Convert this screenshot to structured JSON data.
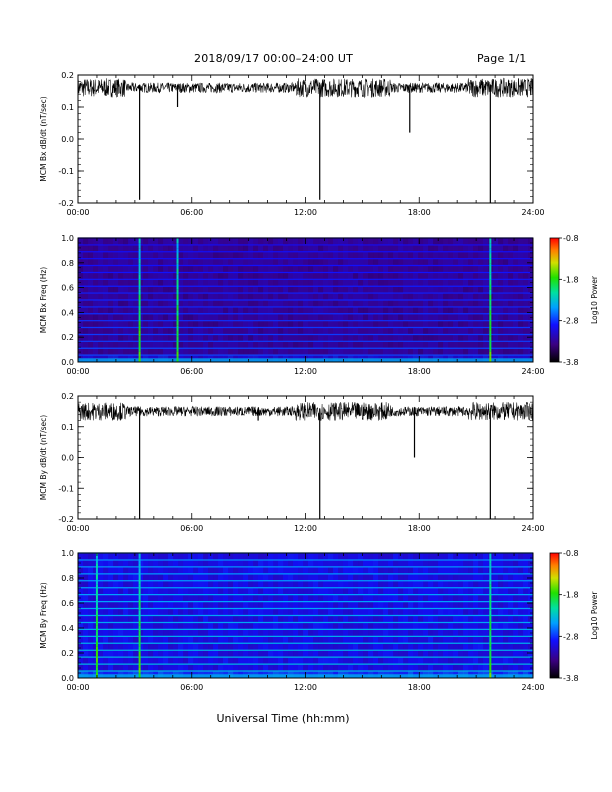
{
  "header": {
    "title": "2018/09/17  00:00–24:00 UT",
    "page": "Page 1/1"
  },
  "footer": {
    "xlabel": "Universal Time (hh:mm)"
  },
  "colors": {
    "spectro_low": "#0a0030",
    "spectro_mid": "#3a10a0",
    "line": "#000000"
  },
  "chart_data": [
    {
      "type": "line",
      "title": "",
      "ylabel": "MCM Bx dB/dt (nT/sec)",
      "xlabel": "",
      "xlim": [
        "00:00",
        "24:00"
      ],
      "xticks": [
        "00:00",
        "06:00",
        "12:00",
        "18:00",
        "24:00"
      ],
      "ylim": [
        -0.2,
        0.2
      ],
      "yticks": [
        "-0.2",
        "-0.1",
        "0.0",
        "0.1",
        "0.2"
      ],
      "baseline": 0.16,
      "noise_amplitude": 0.02,
      "spikes": [
        {
          "t": "03:15",
          "min": -0.19
        },
        {
          "t": "05:15",
          "min": 0.1
        },
        {
          "t": "12:45",
          "min": -0.19
        },
        {
          "t": "17:30",
          "min": 0.02
        },
        {
          "t": "21:45",
          "min": -0.2
        }
      ]
    },
    {
      "type": "heatmap",
      "title": "",
      "ylabel": "MCM Bx Freq (Hz)",
      "xlim": [
        "00:00",
        "24:00"
      ],
      "xticks": [
        "00:00",
        "06:00",
        "12:00",
        "18:00",
        "24:00"
      ],
      "ylim": [
        0.0,
        1.0
      ],
      "yticks": [
        "0.0",
        "0.2",
        "0.4",
        "0.6",
        "0.8",
        "1.0"
      ],
      "colorbar": {
        "label": "Log10 Power",
        "ticks": [
          "-0.8",
          "-1.8",
          "-2.8",
          "-3.8"
        ],
        "range": [
          -3.8,
          -0.8
        ]
      },
      "harmonic_lines_hz": [
        0.056,
        0.111,
        0.167,
        0.222,
        0.278,
        0.333,
        0.389,
        0.444,
        0.5,
        0.556,
        0.611,
        0.667,
        0.722,
        0.778,
        0.833,
        0.889,
        0.944,
        1.0
      ],
      "vertical_events": [
        "03:15",
        "05:15",
        "21:45"
      ]
    },
    {
      "type": "line",
      "title": "",
      "ylabel": "MCM By dB/dt (nT/sec)",
      "xlabel": "",
      "xlim": [
        "00:00",
        "24:00"
      ],
      "xticks": [
        "00:00",
        "06:00",
        "12:00",
        "18:00",
        "24:00"
      ],
      "ylim": [
        -0.2,
        0.2
      ],
      "yticks": [
        "-0.2",
        "-0.1",
        "0.0",
        "0.1",
        "0.2"
      ],
      "baseline": 0.15,
      "noise_amplitude": 0.02,
      "spikes": [
        {
          "t": "03:15",
          "min": -0.2
        },
        {
          "t": "09:30",
          "min": 0.12
        },
        {
          "t": "12:45",
          "min": -0.2
        },
        {
          "t": "17:45",
          "min": 0.0
        },
        {
          "t": "21:45",
          "min": -0.2
        }
      ]
    },
    {
      "type": "heatmap",
      "title": "",
      "ylabel": "MCM By Freq (Hz)",
      "xlim": [
        "00:00",
        "24:00"
      ],
      "xticks": [
        "00:00",
        "06:00",
        "12:00",
        "18:00",
        "24:00"
      ],
      "ylim": [
        0.0,
        1.0
      ],
      "yticks": [
        "0.0",
        "0.2",
        "0.4",
        "0.6",
        "0.8",
        "1.0"
      ],
      "colorbar": {
        "label": "Log10 Power",
        "ticks": [
          "-0.8",
          "-1.8",
          "-2.8",
          "-3.8"
        ],
        "range": [
          -3.8,
          -0.8
        ]
      },
      "harmonic_lines_hz": [
        0.056,
        0.111,
        0.167,
        0.222,
        0.278,
        0.333,
        0.389,
        0.444,
        0.5,
        0.556,
        0.611,
        0.667,
        0.722,
        0.778,
        0.833,
        0.889,
        0.944,
        1.0
      ],
      "vertical_events": [
        "01:00",
        "03:15",
        "21:45"
      ]
    }
  ]
}
